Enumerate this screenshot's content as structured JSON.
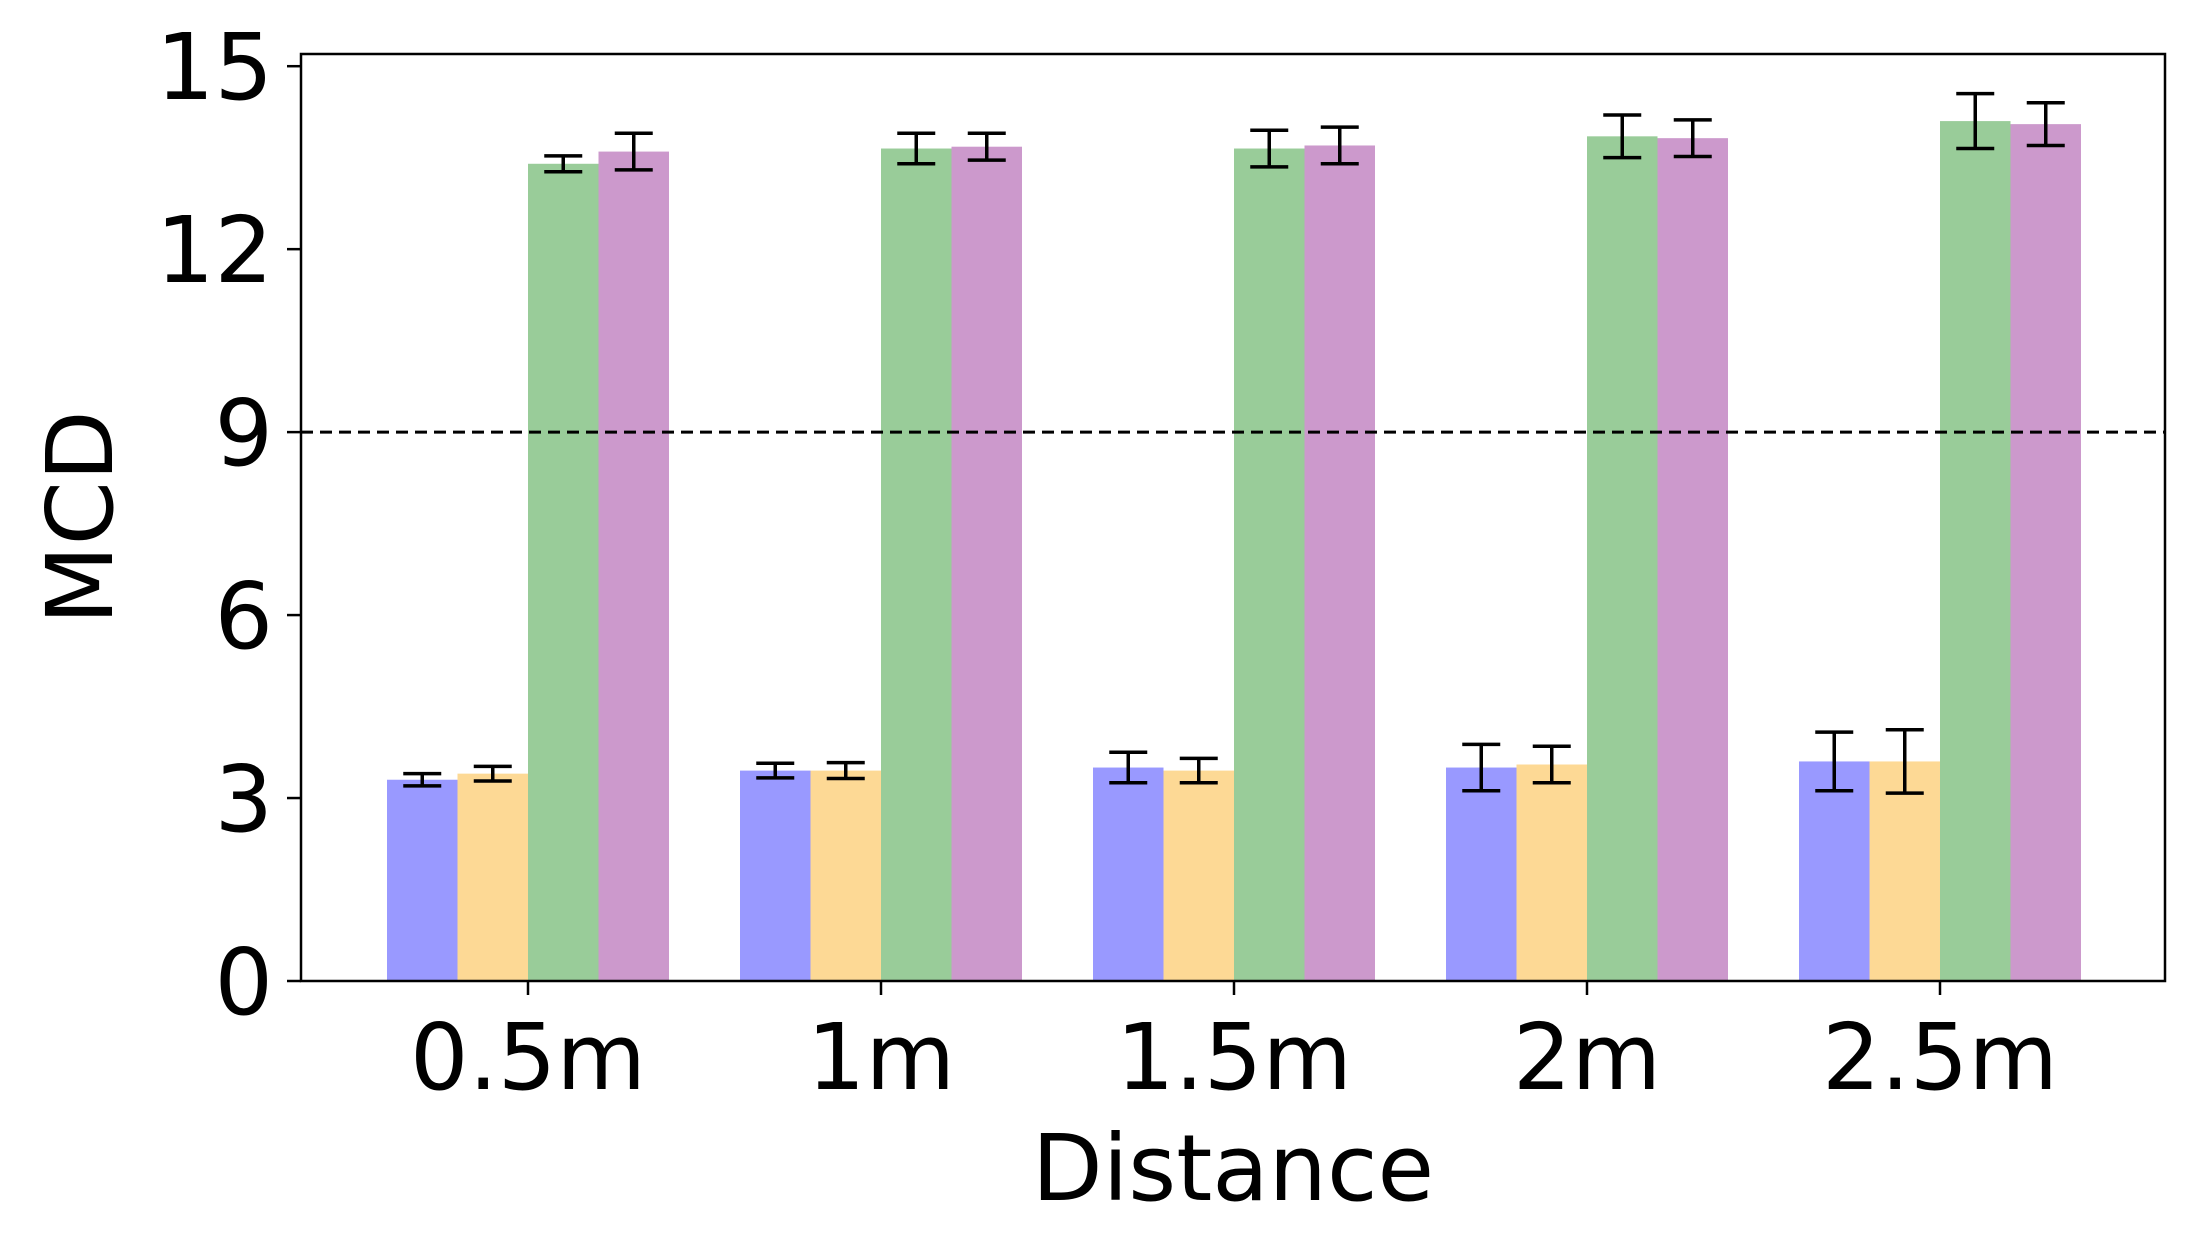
{
  "chart_data": {
    "type": "bar",
    "title": "",
    "xlabel": "Distance",
    "ylabel": "MCD",
    "categories": [
      "0.5m",
      "1m",
      "1.5m",
      "2m",
      "2.5m"
    ],
    "ylim": [
      0,
      15.2
    ],
    "yticks": [
      0,
      3,
      6,
      9,
      12,
      15
    ],
    "reference_line": {
      "y": 9,
      "style": "dashed"
    },
    "grid": false,
    "legend": "none",
    "series": [
      {
        "color": "#9999ff",
        "values": [
          3.3,
          3.45,
          3.5,
          3.5,
          3.6
        ],
        "errors": [
          0.1,
          0.12,
          0.25,
          0.38,
          0.48
        ]
      },
      {
        "color": "#fdd995",
        "values": [
          3.4,
          3.45,
          3.45,
          3.55,
          3.6
        ],
        "errors": [
          0.12,
          0.13,
          0.2,
          0.3,
          0.52
        ]
      },
      {
        "color": "#99cc99",
        "values": [
          13.4,
          13.65,
          13.65,
          13.85,
          14.1
        ],
        "errors": [
          0.13,
          0.25,
          0.3,
          0.35,
          0.45
        ]
      },
      {
        "color": "#cc99cc",
        "values": [
          13.6,
          13.68,
          13.7,
          13.82,
          14.05
        ],
        "errors": [
          0.3,
          0.22,
          0.3,
          0.3,
          0.35
        ]
      }
    ]
  }
}
